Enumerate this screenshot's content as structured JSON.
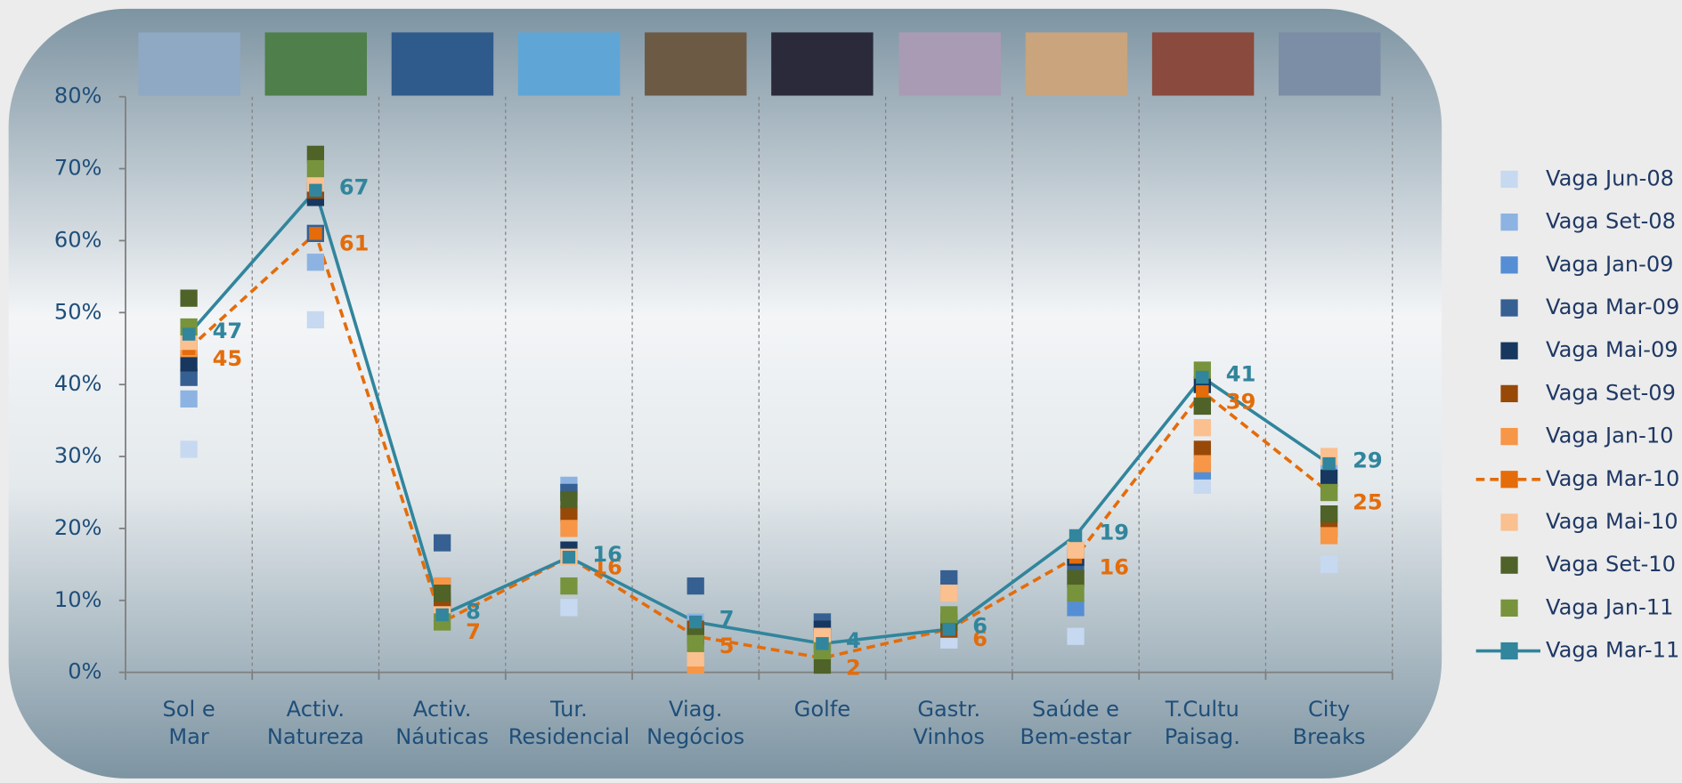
{
  "chart_data": {
    "type": "line",
    "categories": [
      "Sol e\nMar",
      "Activ.\nNatureza",
      "Activ.\nNáuticas",
      "Tur.\nResidencial",
      "Viag.\nNegócios",
      "Golfe",
      "Gastr.\nVinhos",
      "Saúde e\nBem-estar",
      "T.Cultu\nPaisag.",
      "City\nBreaks"
    ],
    "ylim": [
      0,
      80
    ],
    "yticks": [
      {
        "value": 0,
        "label": "0%"
      },
      {
        "value": 10,
        "label": "10%"
      },
      {
        "value": 20,
        "label": "20%"
      },
      {
        "value": 30,
        "label": "30%"
      },
      {
        "value": 40,
        "label": "40%"
      },
      {
        "value": 50,
        "label": "50%"
      },
      {
        "value": 60,
        "label": "60%"
      },
      {
        "value": 70,
        "label": "70%"
      },
      {
        "value": 80,
        "label": "80%"
      }
    ],
    "legend": "right",
    "series": [
      {
        "name": "Vaga Jun-08",
        "color": "#c6d9f1",
        "style": "marker",
        "values": [
          31,
          49,
          12,
          9,
          7,
          5,
          4.5,
          5,
          26,
          15
        ]
      },
      {
        "name": "Vaga Set-08",
        "color": "#8db3e2",
        "style": "marker",
        "values": [
          38,
          57,
          12,
          26,
          7,
          5,
          12,
          11,
          28,
          28
        ]
      },
      {
        "name": "Vaga Jan-09",
        "color": "#558ed5",
        "style": "marker",
        "values": [
          41,
          61,
          12,
          25,
          6,
          7,
          12,
          9,
          28,
          25
        ]
      },
      {
        "name": "Vaga Mar-09",
        "color": "#366092",
        "style": "marker",
        "values": [
          41,
          61,
          18,
          25,
          12,
          7,
          13,
          15,
          37,
          22
        ]
      },
      {
        "name": "Vaga Mai-09",
        "color": "#17375e",
        "style": "marker",
        "values": [
          43,
          66,
          10,
          17,
          5,
          6,
          7,
          16,
          40,
          27
        ]
      },
      {
        "name": "Vaga Set-09",
        "color": "#984807",
        "style": "marker",
        "values": [
          45,
          67,
          9,
          22,
          6,
          4,
          6,
          13,
          31,
          20
        ]
      },
      {
        "name": "Vaga Jan-10",
        "color": "#f79646",
        "style": "marker",
        "values": [
          45,
          68,
          12,
          20,
          1,
          4,
          11,
          17,
          29,
          19
        ]
      },
      {
        "name": "Vaga Mar-10",
        "color": "#e46c0a",
        "style": "dashed",
        "labels": true,
        "values": [
          45,
          61,
          7,
          16,
          5,
          2,
          6,
          16,
          39,
          25
        ]
      },
      {
        "name": "Vaga Mai-10",
        "color": "#fac090",
        "style": "marker",
        "values": [
          46,
          68,
          8,
          16,
          2,
          5,
          11,
          17,
          34,
          30
        ]
      },
      {
        "name": "Vaga Set-10",
        "color": "#4f6228",
        "style": "marker",
        "values": [
          52,
          72,
          11,
          24,
          5,
          1,
          7,
          13,
          37,
          22
        ]
      },
      {
        "name": "Vaga Jan-11",
        "color": "#77933c",
        "style": "marker",
        "values": [
          48,
          70,
          7,
          12,
          4,
          3,
          8,
          11,
          42,
          25
        ]
      },
      {
        "name": "Vaga Mar-11",
        "color": "#31859c",
        "style": "solid",
        "labels": true,
        "values": [
          47,
          67,
          8,
          16,
          7,
          4,
          6,
          19,
          41,
          29
        ]
      }
    ]
  }
}
